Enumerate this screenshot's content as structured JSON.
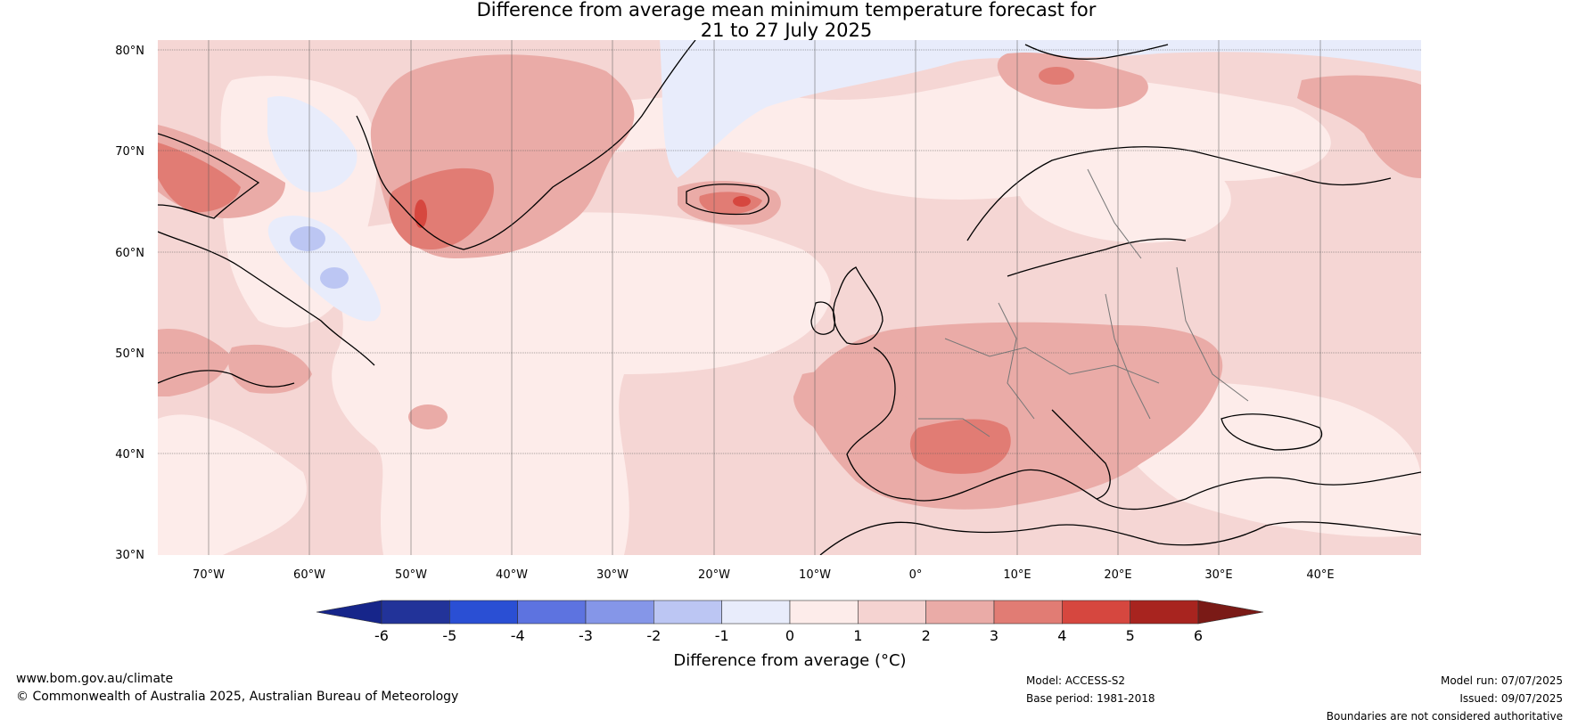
{
  "title": {
    "line1": "Difference from average mean minimum temperature forecast for",
    "line2": "21 to 27 July 2025"
  },
  "map": {
    "lon_range": [
      -75,
      50
    ],
    "lat_range": [
      30,
      81
    ],
    "lat_ticks": [
      "80°N",
      "70°N",
      "60°N",
      "50°N",
      "40°N",
      "30°N"
    ],
    "lon_ticks": [
      "70°W",
      "60°W",
      "50°W",
      "40°W",
      "30°W",
      "20°W",
      "10°W",
      "0°",
      "10°E",
      "20°E",
      "30°E",
      "40°E"
    ],
    "background_anomaly_color": "#f5d6d4",
    "coastline_color": "#000000",
    "border_color": "#777777"
  },
  "colorbar": {
    "ticks": [
      "-6",
      "-5",
      "-4",
      "-3",
      "-2",
      "-1",
      "0",
      "1",
      "2",
      "3",
      "4",
      "5",
      "6"
    ],
    "colors": [
      "#223399",
      "#2a4fd4",
      "#5d73e0",
      "#8596e8",
      "#bcc6f3",
      "#e8ecfb",
      "#fdecea",
      "#f5d3d1",
      "#eaaba7",
      "#e17c74",
      "#d6473f",
      "#a8241f"
    ],
    "low_extend_color": "#16258a",
    "high_extend_color": "#7a1a16",
    "label": "Difference from average (°C)"
  },
  "footer": {
    "website": "www.bom.gov.au/climate",
    "copyright": "© Commonwealth of Australia 2025, Australian Bureau of Meteorology",
    "model": "Model: ACCESS-S2",
    "base_period": "Base period: 1981-2018",
    "model_run": "Model run: 07/07/2025",
    "issued": "Issued: 09/07/2025",
    "disclaimer": "Boundaries are not considered authoritative"
  }
}
